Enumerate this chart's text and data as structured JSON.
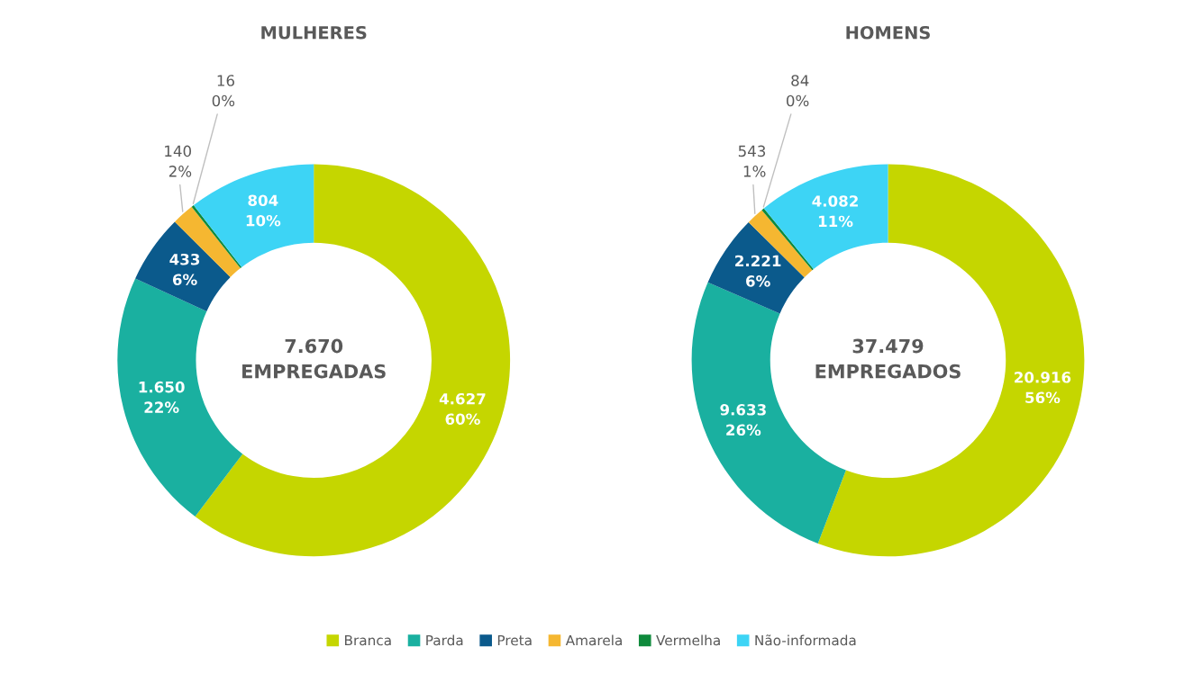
{
  "chart_data": [
    {
      "type": "donut",
      "title": "MULHERES",
      "categories": [
        "Branca",
        "Parda",
        "Preta",
        "Amarela",
        "Vermelha",
        "Não-informada"
      ],
      "values": [
        4627,
        1650,
        433,
        140,
        16,
        804
      ],
      "value_labels": [
        "4.627\n60%",
        "1.650\n22%",
        "433\n6%",
        "140\n2%",
        "16\n0%",
        "804\n10%"
      ],
      "colors": [
        "#c5d600",
        "#1ab0a0",
        "#0b5a8c",
        "#f5b731",
        "#0f8a3c",
        "#3dd4f5"
      ],
      "annotations": [
        "7.670\nEMPREGADAS"
      ],
      "legend": "bottom"
    },
    {
      "type": "donut",
      "title": "HOMENS",
      "categories": [
        null,
        null,
        null,
        null,
        null,
        null
      ],
      "values": [
        20916,
        9633,
        2221,
        543,
        84,
        4082
      ],
      "value_labels": [
        "20.916\n56%",
        "9.633\n26%",
        "2.221\n6%",
        "543\n1%",
        "84\n0%",
        "4.082\n11%"
      ],
      "colors": [
        "#c5d600",
        "#1ab0a0",
        "#0b5a8c",
        "#f5b731",
        "#0f8a3c",
        "#3dd4f5"
      ],
      "annotations": [
        "37.479\nEMPREGADOS"
      ]
    }
  ]
}
